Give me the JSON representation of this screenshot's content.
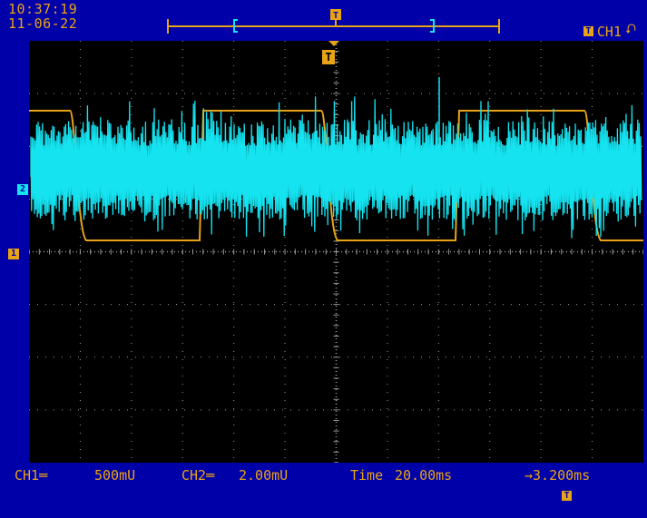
{
  "status": {
    "time": "10:37:19",
    "date": "11-06-22"
  },
  "trigger": {
    "source_label": "CH1",
    "slope_symbol": "⮏",
    "marker_letter": "T"
  },
  "channels": {
    "ch1_marker": "1",
    "ch2_marker": "2",
    "ch1_label": "CH1═",
    "ch1_scale": "500mU",
    "ch2_label": "CH2═",
    "ch2_scale": "2.00mU",
    "time_label": "Time",
    "time_scale": "20.00ms",
    "trigger_offset": "→3.200ms"
  },
  "colors": {
    "ch1": "#e8a317",
    "ch2": "#15e3f0",
    "grid": "#9a9a9a",
    "background": "#000000",
    "bezel": "#0000a8"
  }
}
